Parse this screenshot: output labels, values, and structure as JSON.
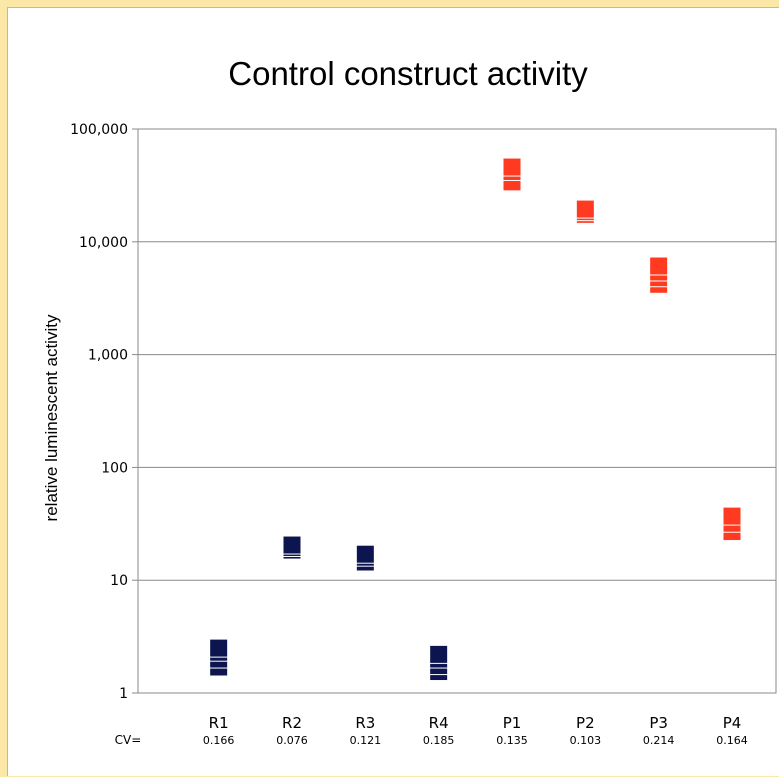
{
  "chart_data": {
    "type": "scatter",
    "title": "Control construct activity",
    "xlabel": "",
    "ylabel": "relative luminescent activity",
    "y_scale": "log",
    "ylim": [
      1,
      100000
    ],
    "y_ticks": [
      {
        "value": 1,
        "label": "1"
      },
      {
        "value": 10,
        "label": "10"
      },
      {
        "value": 100,
        "label": "100"
      },
      {
        "value": 1000,
        "label": "1,000"
      },
      {
        "value": 10000,
        "label": "10,000"
      },
      {
        "value": 100000,
        "label": "100,000"
      }
    ],
    "grid": true,
    "legend": "none",
    "cv_label": "CV=",
    "categories": [
      "R1",
      "R2",
      "R3",
      "R4",
      "P1",
      "P2",
      "P3",
      "P4"
    ],
    "cv_values": [
      "0.166",
      "0.076",
      "0.121",
      "0.185",
      "0.135",
      "0.103",
      "0.214",
      "0.164"
    ],
    "marker": "square",
    "series": [
      {
        "color": "#0c154f",
        "points": [
          {
            "x": "R1",
            "y": 1.7
          },
          {
            "x": "R1",
            "y": 2.0
          },
          {
            "x": "R1",
            "y": 2.3
          },
          {
            "x": "R1",
            "y": 2.5
          },
          {
            "x": "R2",
            "y": 18.5
          },
          {
            "x": "R2",
            "y": 19.5
          },
          {
            "x": "R2",
            "y": 20.5
          },
          {
            "x": "R3",
            "y": 14.5
          },
          {
            "x": "R3",
            "y": 16
          },
          {
            "x": "R3",
            "y": 17
          },
          {
            "x": "R4",
            "y": 1.55
          },
          {
            "x": "R4",
            "y": 1.75
          },
          {
            "x": "R4",
            "y": 2.0
          },
          {
            "x": "R4",
            "y": 2.2
          }
        ]
      },
      {
        "color": "#ff3a20",
        "points": [
          {
            "x": "P1",
            "y": 34000
          },
          {
            "x": "P1",
            "y": 42000
          },
          {
            "x": "P1",
            "y": 46000
          },
          {
            "x": "P2",
            "y": 17500
          },
          {
            "x": "P2",
            "y": 18500
          },
          {
            "x": "P2",
            "y": 19500
          },
          {
            "x": "P3",
            "y": 4200
          },
          {
            "x": "P3",
            "y": 4800
          },
          {
            "x": "P3",
            "y": 5400
          },
          {
            "x": "P3",
            "y": 6100
          },
          {
            "x": "P4",
            "y": 27
          },
          {
            "x": "P4",
            "y": 32
          },
          {
            "x": "P4",
            "y": 37
          }
        ]
      }
    ]
  }
}
